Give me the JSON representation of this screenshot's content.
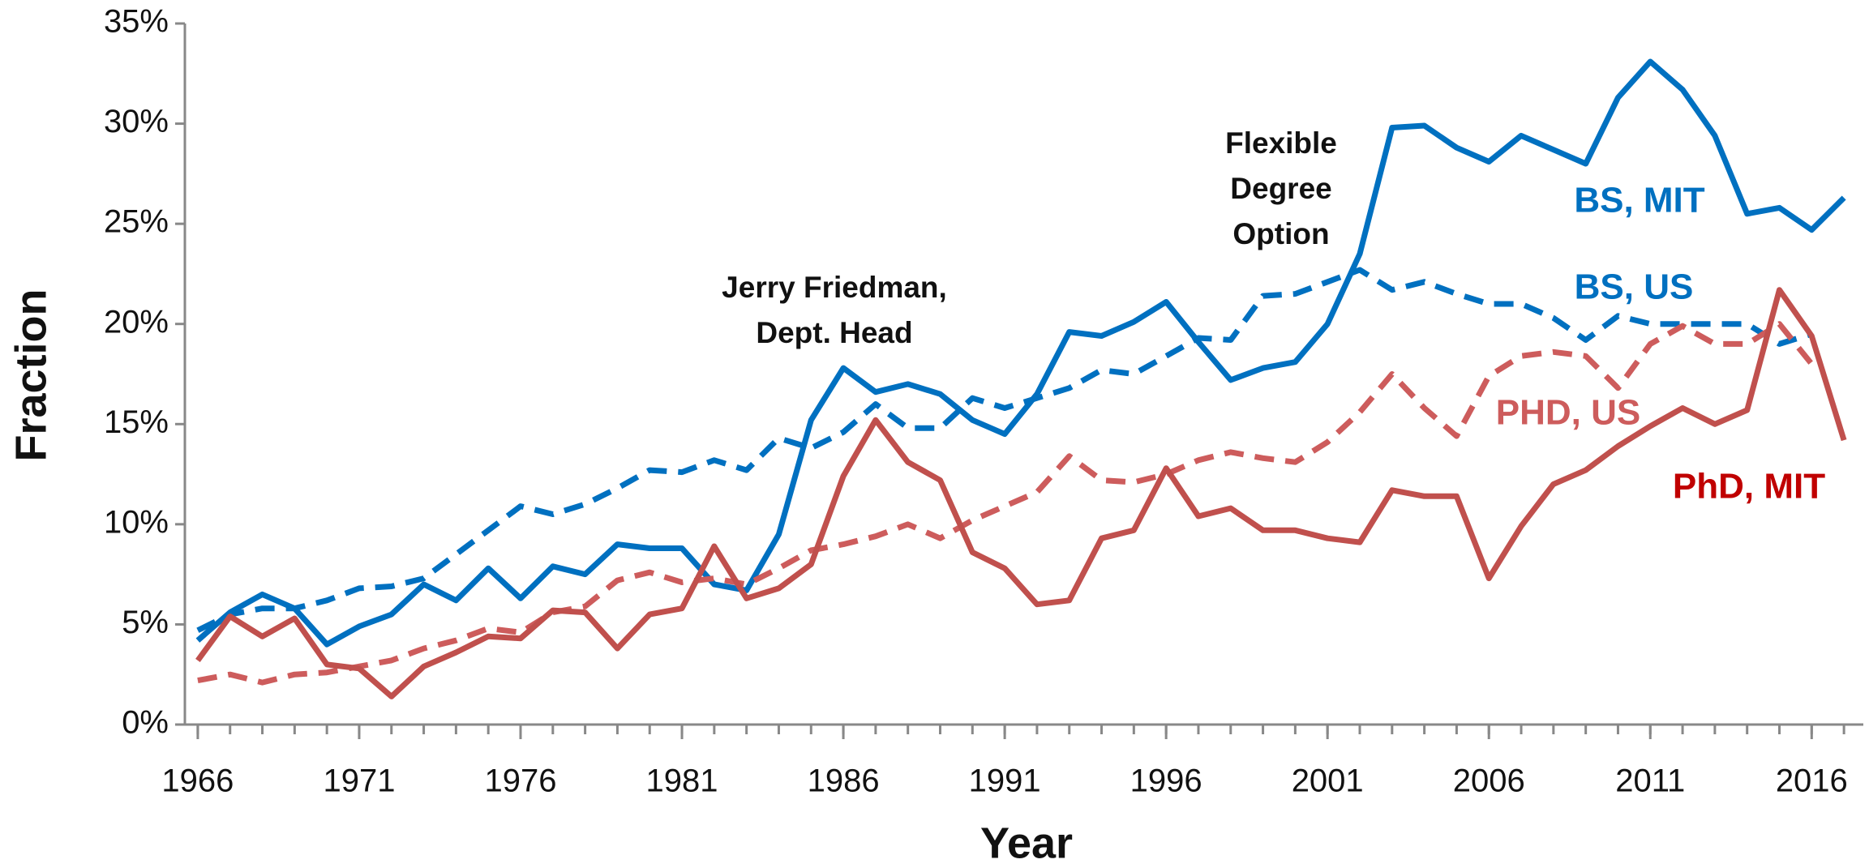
{
  "chart_data": {
    "type": "line",
    "x_label": "Year",
    "y_label": "Fraction",
    "x": [
      1966,
      1967,
      1968,
      1969,
      1970,
      1971,
      1972,
      1973,
      1974,
      1975,
      1976,
      1977,
      1978,
      1979,
      1980,
      1981,
      1982,
      1983,
      1984,
      1985,
      1986,
      1987,
      1988,
      1989,
      1990,
      1991,
      1992,
      1993,
      1994,
      1995,
      1996,
      1997,
      1998,
      1999,
      2000,
      2001,
      2002,
      2003,
      2004,
      2005,
      2006,
      2007,
      2008,
      2009,
      2010,
      2011,
      2012,
      2013,
      2014,
      2015,
      2016,
      2017
    ],
    "series": [
      {
        "name": "BS, MIT",
        "color": "#0070c0",
        "dashed": false,
        "values": [
          4.2,
          5.6,
          6.5,
          5.8,
          4.0,
          4.9,
          5.5,
          7.0,
          6.2,
          7.8,
          6.3,
          7.9,
          7.5,
          9.0,
          8.8,
          8.8,
          7.0,
          6.7,
          9.5,
          15.2,
          17.8,
          16.6,
          17.0,
          16.5,
          15.2,
          14.5,
          16.5,
          19.6,
          19.4,
          20.1,
          21.1,
          19.1,
          17.2,
          17.8,
          18.1,
          20.0,
          23.5,
          29.8,
          29.9,
          28.8,
          28.1,
          29.4,
          28.7,
          28.0,
          31.3,
          33.1,
          31.7,
          29.4,
          25.5,
          25.8,
          24.7,
          26.3
        ]
      },
      {
        "name": "BS, US",
        "color": "#0070c0",
        "dashed": true,
        "values": [
          4.7,
          5.5,
          5.8,
          5.8,
          6.2,
          6.8,
          6.9,
          7.3,
          8.5,
          9.7,
          10.9,
          10.5,
          11.0,
          11.8,
          12.7,
          12.6,
          13.2,
          12.7,
          14.3,
          13.8,
          14.6,
          16.0,
          14.8,
          14.8,
          16.3,
          15.8,
          16.3,
          16.8,
          17.7,
          17.5,
          18.4,
          19.3,
          19.2,
          21.4,
          21.5,
          22.1,
          22.7,
          21.7,
          22.1,
          21.5,
          21.0,
          21.0,
          20.3,
          19.2,
          20.4,
          20.0,
          20.0,
          20.0,
          20.0,
          19.0,
          19.5,
          null
        ]
      },
      {
        "name": "PHD, US",
        "color": "#cd5c5c",
        "dashed": true,
        "values": [
          2.2,
          2.5,
          2.1,
          2.5,
          2.6,
          2.9,
          3.2,
          3.8,
          4.2,
          4.8,
          4.6,
          5.6,
          5.9,
          7.2,
          7.6,
          7.1,
          7.3,
          7.0,
          7.8,
          8.7,
          9.0,
          9.4,
          10.0,
          9.3,
          10.2,
          10.9,
          11.6,
          13.4,
          12.2,
          12.1,
          12.5,
          13.2,
          13.6,
          13.3,
          13.1,
          14.1,
          15.6,
          17.5,
          15.8,
          14.4,
          17.4,
          18.4,
          18.6,
          18.4,
          16.8,
          19.0,
          19.9,
          19.0,
          19.0,
          20.0,
          18.0,
          null
        ]
      },
      {
        "name": "PhD, MIT",
        "color": "#c0504d",
        "label_color": "#c00000",
        "dashed": false,
        "values": [
          3.2,
          5.4,
          4.4,
          5.3,
          3.0,
          2.8,
          1.4,
          2.9,
          3.6,
          4.4,
          4.3,
          5.7,
          5.6,
          3.8,
          5.5,
          5.8,
          8.9,
          6.3,
          6.8,
          8.0,
          12.4,
          15.2,
          13.1,
          12.2,
          8.6,
          7.8,
          6.0,
          6.2,
          9.3,
          9.7,
          12.8,
          10.4,
          10.8,
          9.7,
          9.7,
          9.3,
          9.1,
          11.7,
          11.4,
          11.4,
          7.3,
          9.9,
          12.0,
          12.7,
          13.9,
          14.9,
          15.8,
          15.0,
          15.7,
          21.7,
          19.4,
          14.2
        ]
      }
    ],
    "annotations": [
      {
        "lines": [
          "Jerry Friedman,",
          "Dept. Head"
        ]
      },
      {
        "lines": [
          "Flexible",
          "Degree",
          "Option"
        ]
      }
    ],
    "xlim": [
      1965.6,
      2017.6
    ],
    "xticks": [
      1966,
      1971,
      1976,
      1981,
      1986,
      1991,
      1996,
      2001,
      2006,
      2011,
      2016
    ],
    "ylim": [
      0,
      35
    ],
    "yticks": [
      {
        "value": 0,
        "label": "0%"
      },
      {
        "value": 5,
        "label": "5%"
      },
      {
        "value": 10,
        "label": "10%"
      },
      {
        "value": 15,
        "label": "15%"
      },
      {
        "value": 20,
        "label": "20%"
      },
      {
        "value": 25,
        "label": "25%"
      },
      {
        "value": 30,
        "label": "30%"
      },
      {
        "value": 35,
        "label": "35%"
      }
    ],
    "grid": false
  }
}
